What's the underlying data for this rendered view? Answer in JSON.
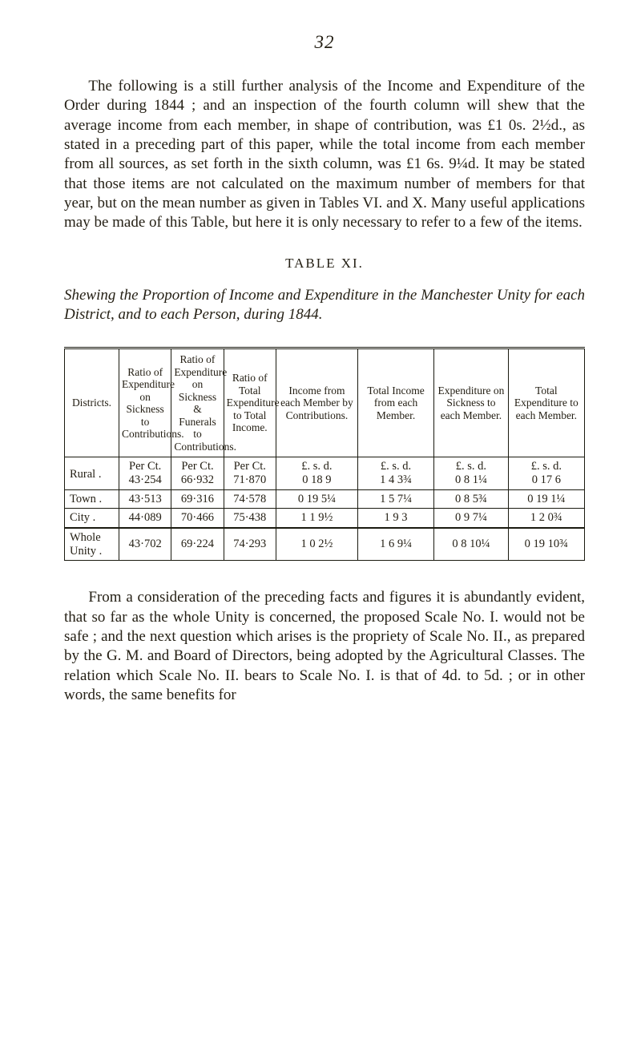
{
  "page_number": "32",
  "para1": "The following is a still further analysis of the Income and Expenditure of the Order during 1844 ; and an inspection of the fourth column will shew that the average income from each member, in shape of contribution, was £1 0s. 2½d., as stated in a preceding part of this paper, while the total income from each member from all sources, as set forth in the sixth column, was £1 6s. 9¼d. It may be stated that those items are not calculated on the maximum number of members for that year, but on the mean number as given in Tables VI. and X. Many useful applications may be made of this Table, but here it is only necessary to refer to a few of the items.",
  "table_label": "TABLE XI.",
  "table_caption": "Shewing the Proportion of Income and Expenditure in the Manchester Unity for each District, and to each Person, during 1844.",
  "headers": {
    "c1": "Districts.",
    "c2": "Ratio of Expenditure on Sickness to Contributions.",
    "c3": "Ratio of Expenditure on Sickness & Funerals to Contributions.",
    "c4": "Ratio of Total Expenditure to Total Income.",
    "c5": "Income from each Member by Contributions.",
    "c6": "Total Income from each Member.",
    "c7": "Expenditure on Sickness to each Member.",
    "c8": "Total Expenditure to each Member."
  },
  "unit_row": {
    "c2": "Per Ct.",
    "c3": "Per Ct.",
    "c4": "Per Ct.",
    "c5": "£. s. d.",
    "c6": "£. s. d.",
    "c7": "£. s. d.",
    "c8": "£. s. d."
  },
  "rows": [
    {
      "dist": "Rural .",
      "c2": "43·254",
      "c3": "66·932",
      "c4": "71·870",
      "c5": "0 18  9",
      "c6": "1  4  3¾",
      "c7": "0  8  1¼",
      "c8": "0 17  6"
    },
    {
      "dist": "Town .",
      "c2": "43·513",
      "c3": "69·316",
      "c4": "74·578",
      "c5": "0 19  5¼",
      "c6": "1  5  7¼",
      "c7": "0  8  5¾",
      "c8": "0 19  1¼"
    },
    {
      "dist": "City  .",
      "c2": "44·089",
      "c3": "70·466",
      "c4": "75·438",
      "c5": "1  1  9½",
      "c6": "1  9  3",
      "c7": "0  9  7¼",
      "c8": "1  2  0¾"
    }
  ],
  "whole_row": {
    "dist": "Whole Unity .",
    "c2": "43·702",
    "c3": "69·224",
    "c4": "74·293",
    "c5": "1  0  2½",
    "c6": "1  6  9¼",
    "c7": "0  8 10¼",
    "c8": "0 19 10¾"
  },
  "para2": "From a consideration of the preceding facts and figures it is abundantly evident, that so far as the whole Unity is concerned, the proposed Scale No. I. would not be safe ; and the next question which arises is the propriety of Scale No. II., as prepared by the G. M. and Board of Directors, being adopted by the Agricultural Classes. The relation which Scale No. II. bears to Scale No. I. is that of 4d. to 5d. ; or in other words, the same benefits for"
}
